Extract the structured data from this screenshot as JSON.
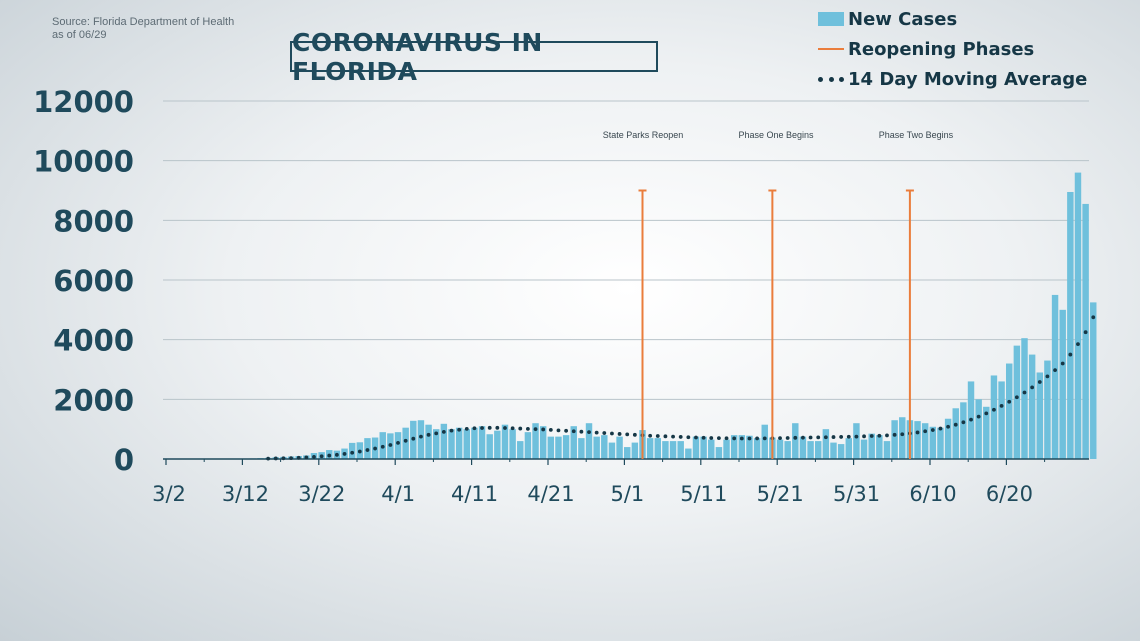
{
  "source": {
    "line1": "Source: Florida Department of Health",
    "line2": "as of 06/29"
  },
  "legend": {
    "new_cases": "New Cases",
    "reopening": "Reopening Phases",
    "moving_avg": "14 Day Moving Average"
  },
  "colors": {
    "bars": "#6fc0dc",
    "reopening": "#ea7d3c",
    "moving_avg": "#163746",
    "text": "#1f4a5c"
  },
  "chart_data": {
    "type": "bar",
    "title": "CORONAVIRUS IN FLORIDA",
    "x_start_label": "3/2",
    "x_tick_labels": [
      "3/2",
      "3/12",
      "3/22",
      "4/1",
      "4/11",
      "4/21",
      "5/1",
      "5/11",
      "5/21",
      "5/31",
      "6/10",
      "6/20"
    ],
    "ylim": [
      0,
      12000
    ],
    "y_ticks": [
      0,
      2000,
      4000,
      6000,
      8000,
      10000,
      12000
    ],
    "grid": true,
    "series": [
      {
        "name": "New Cases",
        "type": "bar",
        "values": [
          0,
          0,
          0,
          0,
          0,
          2,
          4,
          5,
          9,
          12,
          14,
          20,
          30,
          40,
          60,
          70,
          85,
          100,
          120,
          200,
          230,
          300,
          280,
          350,
          540,
          560,
          700,
          720,
          900,
          860,
          900,
          1050,
          1280,
          1300,
          1150,
          1000,
          1180,
          1000,
          1050,
          1000,
          1050,
          1100,
          830,
          950,
          1150,
          1000,
          600,
          900,
          1200,
          1100,
          750,
          750,
          800,
          1100,
          700,
          1200,
          750,
          800,
          550,
          750,
          400,
          550,
          970,
          700,
          700,
          600,
          600,
          600,
          350,
          750,
          750,
          650,
          400,
          650,
          800,
          800,
          780,
          700,
          1150,
          720,
          650,
          600,
          1200,
          750,
          600,
          600,
          1000,
          550,
          500,
          700,
          1200,
          650,
          850,
          800,
          600,
          1300,
          1400,
          1300,
          1270,
          1200,
          1080,
          1050,
          1350,
          1700,
          1900,
          2600,
          2000,
          1750,
          2800,
          2600,
          3200,
          3800,
          4050,
          3500,
          2900,
          3300,
          5500,
          5000,
          8950,
          9600,
          8550,
          5250
        ]
      },
      {
        "name": "14 Day Moving Average",
        "type": "line-dotted",
        "values": [
          0,
          0,
          0,
          0,
          0,
          1,
          2,
          3,
          4,
          5,
          6,
          8,
          10,
          13,
          18,
          23,
          30,
          40,
          55,
          72,
          92,
          115,
          140,
          170,
          210,
          250,
          300,
          350,
          410,
          470,
          540,
          610,
          680,
          750,
          810,
          860,
          910,
          950,
          980,
          1010,
          1030,
          1040,
          1045,
          1045,
          1040,
          1030,
          1020,
          1010,
          1000,
          990,
          975,
          960,
          945,
          930,
          915,
          900,
          885,
          870,
          855,
          840,
          825,
          810,
          795,
          780,
          770,
          760,
          750,
          740,
          730,
          720,
          712,
          705,
          700,
          695,
          690,
          688,
          688,
          690,
          692,
          695,
          700,
          705,
          710,
          715,
          720,
          725,
          730,
          735,
          740,
          745,
          750,
          760,
          770,
          780,
          790,
          810,
          830,
          860,
          890,
          930,
          970,
          1020,
          1080,
          1150,
          1230,
          1320,
          1420,
          1530,
          1650,
          1780,
          1920,
          2070,
          2230,
          2400,
          2580,
          2770,
          2980,
          3200,
          3500,
          3850,
          4250,
          4750
        ]
      }
    ],
    "reopening_phases": [
      {
        "label": "State Parks Reopen",
        "value": 9000
      },
      {
        "label": "Phase One Begins",
        "value": 9000
      },
      {
        "label": "Phase Two Begins",
        "value": 9000
      }
    ]
  }
}
